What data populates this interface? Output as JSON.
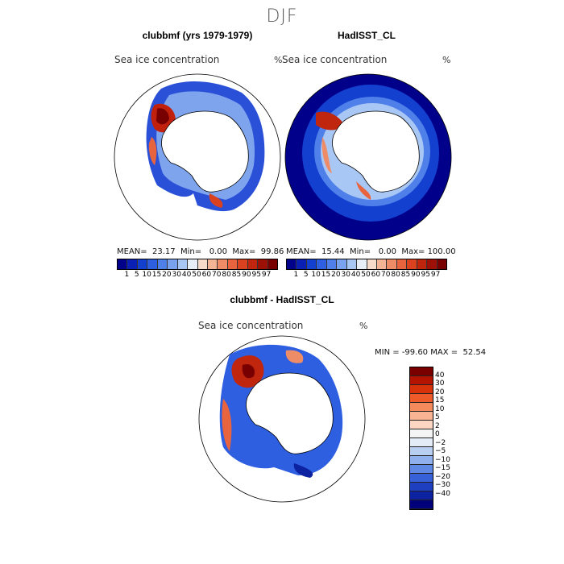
{
  "title": "DJF",
  "panels": {
    "model": {
      "title": "clubbmf (yrs 1979-1979)",
      "variable": "Sea ice concentration",
      "unit": "%",
      "mean_label": "MEAN=",
      "mean": "23.17",
      "min_label": "Min=",
      "min": "0.00",
      "max_label": "Max=",
      "max": "99.86"
    },
    "obs": {
      "title": "HadISST_CL",
      "variable": "Sea ice concentration",
      "unit": "%",
      "mean_label": "MEAN=",
      "mean": "15.44",
      "min_label": "Min=",
      "min": "0.00",
      "max_label": "Max=",
      "max": "100.00"
    },
    "diff": {
      "title": "clubbmf - HadISST_CL",
      "variable": "Sea ice concentration",
      "unit": "%",
      "min_label": "MIN =",
      "min": "-99.60",
      "max_label": "MAX =",
      "max": "52.54"
    }
  },
  "colorbar_abs": {
    "colors": [
      "#00008b",
      "#0a1fb4",
      "#1440d0",
      "#2e5fe0",
      "#4f7fe8",
      "#7aa3ef",
      "#a9c7f5",
      "#e8eef8",
      "#f8dccb",
      "#f4b496",
      "#ef8c68",
      "#e8643f",
      "#d9411f",
      "#c0250d",
      "#9c1006",
      "#780000"
    ],
    "labels": [
      "1",
      "5",
      "10",
      "15",
      "20",
      "30",
      "40",
      "50",
      "60",
      "70",
      "80",
      "85",
      "90",
      "95",
      "97"
    ]
  },
  "colorbar_diff": {
    "colors": [
      "#7a0000",
      "#b31300",
      "#d8320a",
      "#ee5a28",
      "#f58a5c",
      "#f8b493",
      "#fcd6c2",
      "#f4f4f4",
      "#e4ecf8",
      "#b8cff2",
      "#8fb0ec",
      "#5f88e4",
      "#3860d8",
      "#1d3fc0",
      "#0d22a0",
      "#00007a"
    ],
    "labels": [
      "40",
      "30",
      "20",
      "15",
      "10",
      "5",
      "2",
      "0",
      "−2",
      "−5",
      "−10",
      "−15",
      "−20",
      "−30",
      "−40"
    ]
  }
}
